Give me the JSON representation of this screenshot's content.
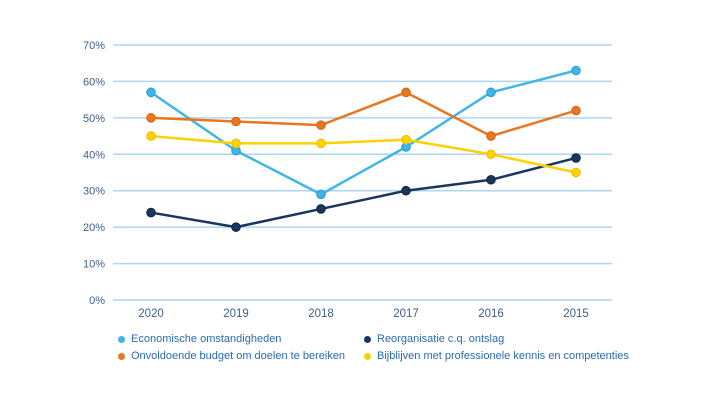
{
  "chart_data": {
    "type": "line",
    "categories": [
      "2020",
      "2019",
      "2018",
      "2017",
      "2016",
      "2015"
    ],
    "series": [
      {
        "name": "Economische omstandigheden",
        "color": "#41B6E6",
        "marker_color": "#2D9FD6",
        "values": [
          57,
          41,
          29,
          42,
          57,
          63
        ]
      },
      {
        "name": "Reorganisatie c.q. ontslag",
        "color": "#1B365D",
        "marker_color": "#102745",
        "values": [
          24,
          20,
          25,
          30,
          33,
          39
        ]
      },
      {
        "name": "Onvoldoende budget om doelen te bereiken",
        "color": "#E87722",
        "marker_color": "#DA6615",
        "values": [
          50,
          49,
          48,
          57,
          45,
          52
        ]
      },
      {
        "name": "Bijblijven met professionele kennis en competenties",
        "color": "#FFD100",
        "marker_color": "#F0C000",
        "values": [
          45,
          43,
          43,
          44,
          40,
          35
        ]
      }
    ],
    "title": "",
    "xlabel": "",
    "ylabel": "",
    "ylim": [
      0,
      70
    ],
    "ytick_step": 10,
    "ytick_suffix": "%",
    "grid": true,
    "legend_position": "bottom",
    "legend_columns": 2
  },
  "colors": {
    "background": "#FFFFFF",
    "gridline": "#AED6F1",
    "axis_label": "#3F5E88",
    "legend_text": "#2A6BB0"
  }
}
